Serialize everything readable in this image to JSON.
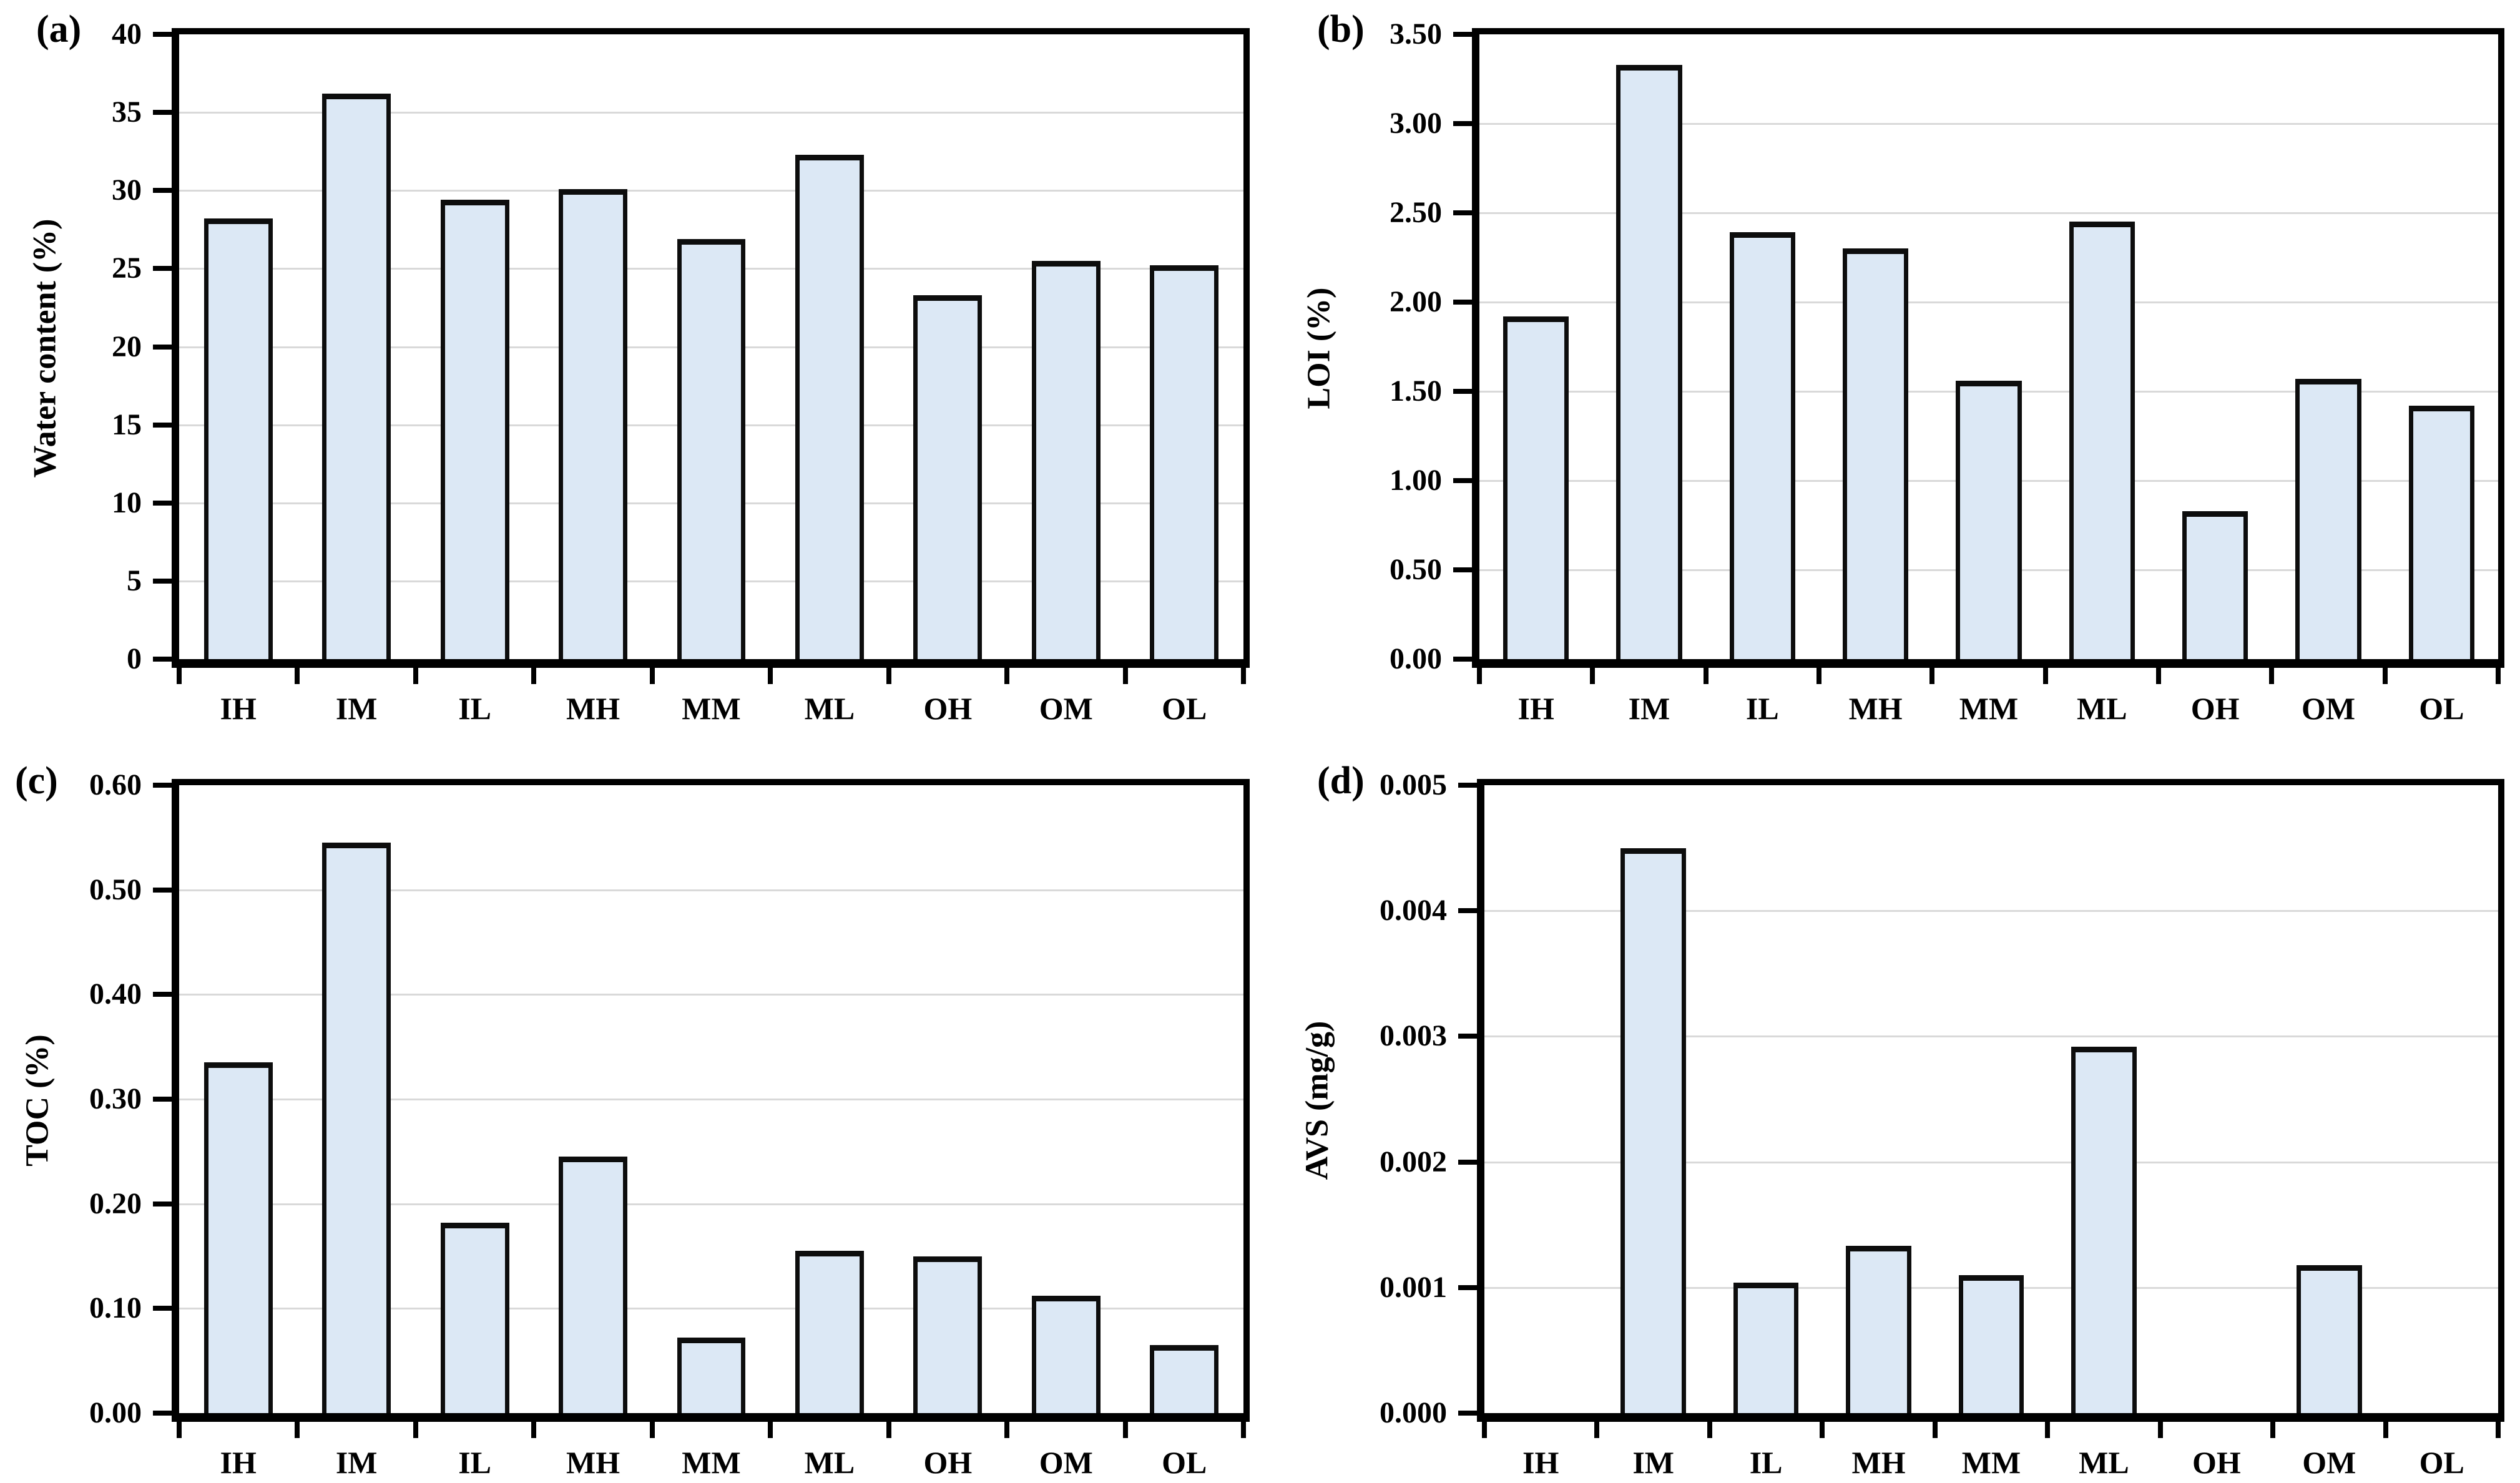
{
  "figure": {
    "background": "#ffffff",
    "description": "Four-panel bar chart figure of sediment properties by station"
  },
  "colors": {
    "bar_fill": "#dce8f5",
    "bar_border": "#0d0d0d",
    "axis": "#000000",
    "gridline": "#d9d9d9",
    "text": "#000000"
  },
  "chart_data": [
    {
      "id": "a",
      "type": "bar",
      "panel_label": "(a)",
      "title": "",
      "xlabel": "",
      "ylabel": "Water content (%)",
      "categories": [
        "IH",
        "IM",
        "IL",
        "MH",
        "MM",
        "ML",
        "OH",
        "OM",
        "OL"
      ],
      "values": [
        28.2,
        36.2,
        29.4,
        30.1,
        26.9,
        32.3,
        23.3,
        25.5,
        25.2
      ],
      "ylim": [
        0,
        40
      ],
      "ytick_labels": [
        "0",
        "5",
        "10",
        "15",
        "20",
        "25",
        "30",
        "35",
        "40"
      ],
      "grid": true,
      "legend": "none"
    },
    {
      "id": "b",
      "type": "bar",
      "panel_label": "(b)",
      "title": "",
      "xlabel": "",
      "ylabel": "LOI (%)",
      "categories": [
        "IH",
        "IM",
        "IL",
        "MH",
        "MM",
        "ML",
        "OH",
        "OM",
        "OL"
      ],
      "values": [
        1.92,
        3.33,
        2.39,
        2.3,
        1.56,
        2.45,
        0.83,
        1.57,
        1.42
      ],
      "ylim": [
        0,
        3.5
      ],
      "ytick_labels": [
        "0.00",
        "0.50",
        "1.00",
        "1.50",
        "2.00",
        "2.50",
        "3.00",
        "3.50"
      ],
      "grid": true,
      "legend": "none"
    },
    {
      "id": "c",
      "type": "bar",
      "panel_label": "(c)",
      "title": "",
      "xlabel": "",
      "ylabel": "TOC (%)",
      "categories": [
        "IH",
        "IM",
        "IL",
        "MH",
        "MM",
        "ML",
        "OH",
        "OM",
        "OL"
      ],
      "values": [
        0.335,
        0.545,
        0.182,
        0.245,
        0.072,
        0.155,
        0.15,
        0.112,
        0.065
      ],
      "ylim": [
        0,
        0.6
      ],
      "ytick_labels": [
        "0.00",
        "0.10",
        "0.20",
        "0.30",
        "0.40",
        "0.50",
        "0.60"
      ],
      "grid": true,
      "legend": "none"
    },
    {
      "id": "d",
      "type": "bar",
      "panel_label": "(d)",
      "title": "",
      "xlabel": "",
      "ylabel": "AVS (mg/g)",
      "categories": [
        "IH",
        "IM",
        "IL",
        "MH",
        "MM",
        "ML",
        "OH",
        "OM",
        "OL"
      ],
      "values": [
        0,
        0.0045,
        0.00104,
        0.00133,
        0.0011,
        0.00292,
        0,
        0.00118,
        0
      ],
      "ylim": [
        0,
        0.005
      ],
      "ytick_labels": [
        "0.000",
        "0.001",
        "0.002",
        "0.003",
        "0.004",
        "0.005"
      ],
      "grid": true,
      "legend": "none"
    }
  ]
}
